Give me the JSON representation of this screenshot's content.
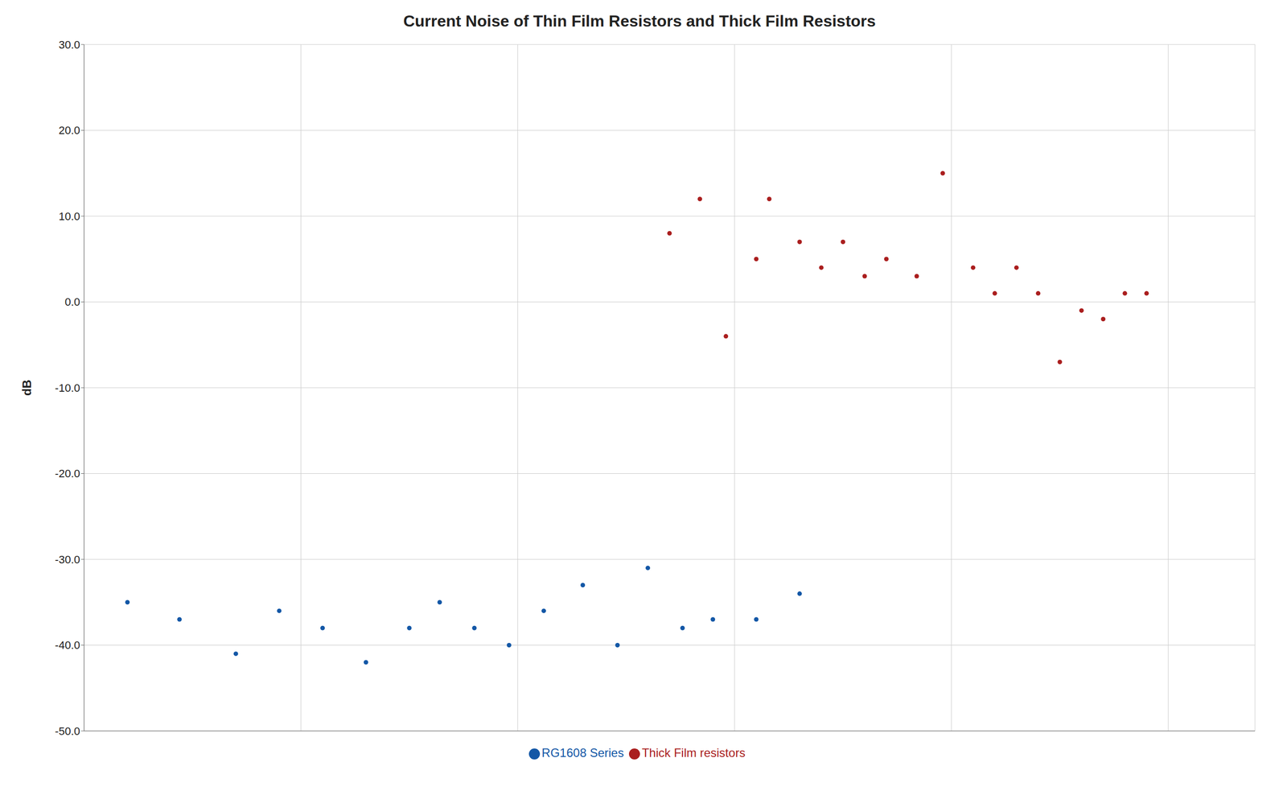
{
  "chart_data": {
    "type": "scatter",
    "title": "Current Noise of Thin Film Resistors and Thick Film Resistors",
    "y_label": "dB",
    "xlim": [
      0,
      27
    ],
    "xticks": [
      0,
      5,
      10,
      15,
      20,
      25
    ],
    "ylim": [
      -50.0,
      30.0
    ],
    "yticks": [
      {
        "value": -50,
        "label": "-50.0"
      },
      {
        "value": -40,
        "label": "-40.0"
      },
      {
        "value": -30,
        "label": "-30.0"
      },
      {
        "value": -20,
        "label": "-20.0"
      },
      {
        "value": -10,
        "label": "-10.0"
      },
      {
        "value": 0,
        "label": "0.0"
      },
      {
        "value": 10,
        "label": "10.0"
      },
      {
        "value": 20,
        "label": "20.0"
      },
      {
        "value": 30,
        "label": "30.0"
      }
    ],
    "tick_labels": "y",
    "grid": true,
    "legend": "bottom",
    "series": [
      {
        "name": "RG1608 Series",
        "color": "#1357a6",
        "x": [
          1,
          2.2,
          3.5,
          4.5,
          5.5,
          6.5,
          7.5,
          8.2,
          9.0,
          9.8,
          10.6,
          11.5,
          12.3,
          13.0,
          13.8,
          14.5,
          15.5,
          16.5
        ],
        "values": [
          -35,
          -37,
          -41,
          -36,
          -38,
          -42,
          -38,
          -35,
          -38,
          -40,
          -36,
          -33,
          -40,
          -31,
          -38,
          -37,
          -37,
          -34
        ]
      },
      {
        "name": "Thick Film resistors",
        "color": "#aa1e1e",
        "x": [
          13.5,
          14.2,
          14.8,
          15.5,
          15.8,
          16.5,
          17.0,
          17.5,
          18.0,
          18.5,
          19.2,
          19.8,
          20.5,
          21.0,
          21.5,
          22.0,
          22.5,
          23.0,
          23.5,
          24.0,
          24.5
        ],
        "values": [
          8,
          12,
          -4,
          5,
          12,
          7,
          4,
          7,
          3,
          5,
          3,
          15,
          4,
          1,
          4,
          1,
          -7,
          -1,
          -2,
          1,
          1
        ]
      }
    ]
  }
}
